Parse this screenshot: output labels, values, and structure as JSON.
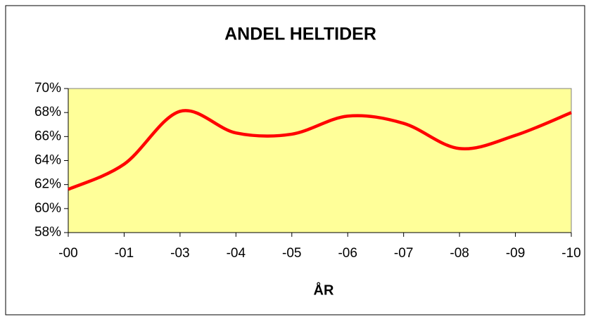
{
  "chart_data": {
    "type": "line",
    "title": "ANDEL HELTIDER",
    "x_label": "ÅR",
    "categories": [
      "-00",
      "-01",
      "-03",
      "-04",
      "-05",
      "-06",
      "-07",
      "-08",
      "-09",
      "-10"
    ],
    "series": [
      {
        "color": "#ff0000",
        "values": [
          61.6,
          63.7,
          68.1,
          66.3,
          66.2,
          67.7,
          67.1,
          65.0,
          66.1,
          68.0
        ]
      }
    ],
    "ylim": [
      58,
      70
    ],
    "yticks": [
      {
        "value": 58,
        "label": "58%"
      },
      {
        "value": 60,
        "label": "60%"
      },
      {
        "value": 62,
        "label": "62%"
      },
      {
        "value": 64,
        "label": "64%"
      },
      {
        "value": 66,
        "label": "66%"
      },
      {
        "value": 68,
        "label": "68%"
      },
      {
        "value": 70,
        "label": "70%"
      }
    ],
    "plot_background": "#ffff99"
  }
}
